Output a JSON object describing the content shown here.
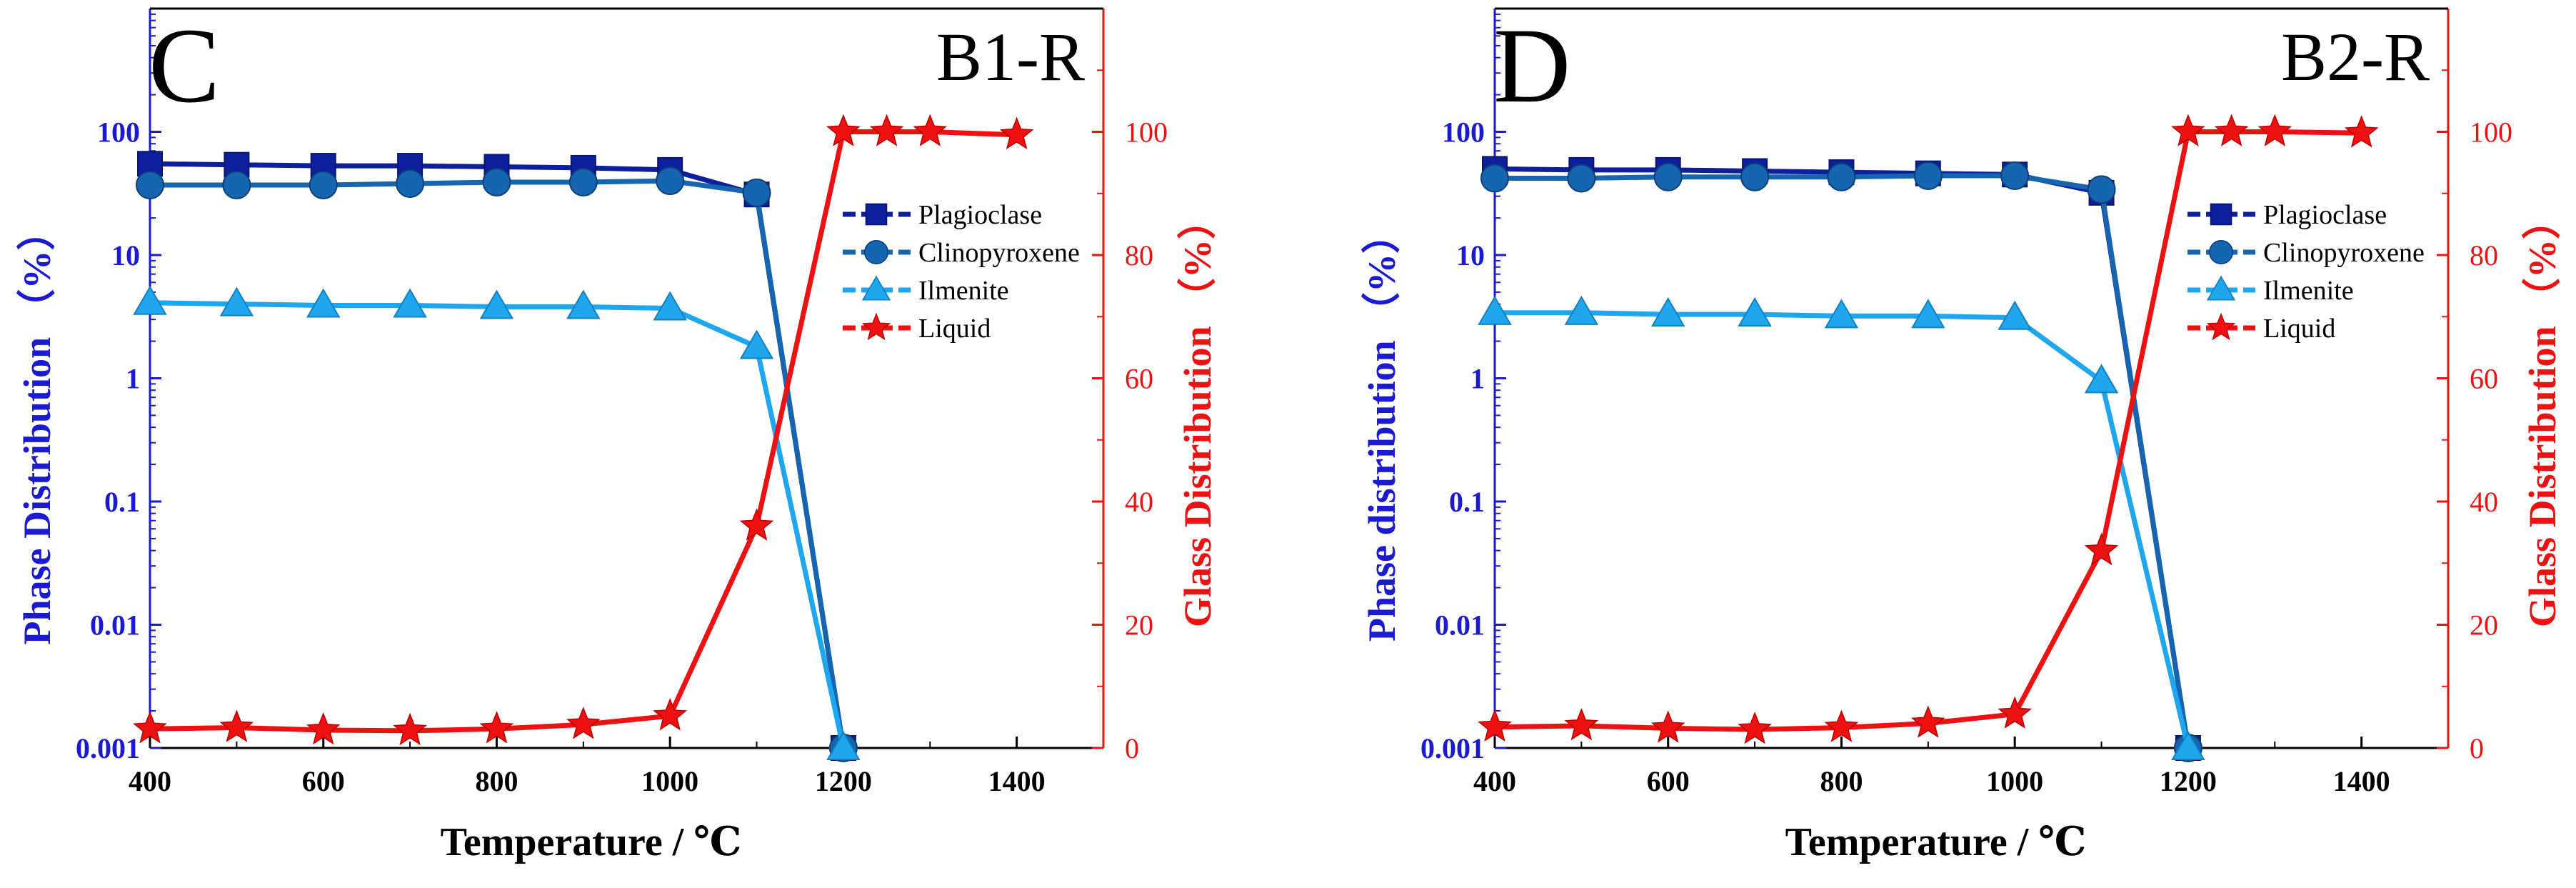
{
  "chart_data": [
    {
      "type": "line",
      "panel_letter": "C",
      "sample": "B1-R",
      "xlabel": "Temperature / ℃",
      "ylabel_left": "Phase Distribution （%）",
      "ylabel_right": "Glass Distribution （%）",
      "xlim": [
        400,
        1500
      ],
      "xticks": [
        400,
        600,
        800,
        1000,
        1200,
        1400
      ],
      "ylim_left": [
        0.001,
        1000
      ],
      "yscale_left": "log",
      "yticks_left": [
        "0.001",
        "0.01",
        "0.1",
        "1",
        "10",
        "100"
      ],
      "ylim_right": [
        0,
        120
      ],
      "yticks_right": [
        0,
        20,
        40,
        60,
        80,
        100
      ],
      "legend": [
        "Plagioclase",
        "Clinopyroxene",
        "Ilmenite",
        "Liquid"
      ],
      "legend_position": "top-right",
      "series": [
        {
          "name": "Plagioclase",
          "axis": "left",
          "marker": "square",
          "color": "#0d1f9c",
          "x": [
            400,
            500,
            600,
            700,
            800,
            900,
            1000,
            1100,
            1200
          ],
          "y": [
            55,
            54,
            53,
            53,
            52,
            51,
            49,
            31,
            0.001
          ]
        },
        {
          "name": "Clinopyroxene",
          "axis": "left",
          "marker": "circle",
          "color": "#1565b0",
          "x": [
            400,
            500,
            600,
            700,
            800,
            900,
            1000,
            1100,
            1200
          ],
          "y": [
            37,
            37,
            37,
            38,
            39,
            39,
            40,
            32,
            0.001
          ]
        },
        {
          "name": "Ilmenite",
          "axis": "left",
          "marker": "triangle",
          "color": "#1ea6ef",
          "x": [
            400,
            500,
            600,
            700,
            800,
            900,
            1000,
            1100,
            1200
          ],
          "y": [
            4.1,
            4.0,
            3.9,
            3.9,
            3.8,
            3.8,
            3.7,
            1.8,
            0.001
          ]
        },
        {
          "name": "Liquid",
          "axis": "right",
          "marker": "star",
          "color": "#ee1111",
          "x": [
            400,
            500,
            600,
            700,
            800,
            900,
            1000,
            1100,
            1200,
            1250,
            1300,
            1400
          ],
          "y": [
            3.1,
            3.3,
            2.9,
            2.8,
            3.1,
            3.8,
            5.2,
            36,
            100,
            100,
            100,
            99.5
          ]
        }
      ]
    },
    {
      "type": "line",
      "panel_letter": "D",
      "sample": "B2-R",
      "xlabel": "Temperature / ℃",
      "ylabel_left": "Phase distribution （%）",
      "ylabel_right": "Glass Distribution （%）",
      "xlim": [
        400,
        1500
      ],
      "xticks": [
        400,
        600,
        800,
        1000,
        1200,
        1400
      ],
      "ylim_left": [
        0.001,
        1000
      ],
      "yscale_left": "log",
      "yticks_left": [
        "0.001",
        "0.01",
        "0.1",
        "1",
        "10",
        "100"
      ],
      "ylim_right": [
        0,
        120
      ],
      "yticks_right": [
        0,
        20,
        40,
        60,
        80,
        100
      ],
      "legend": [
        "Plagioclase",
        "Clinopyroxene",
        "Ilmenite",
        "Liquid"
      ],
      "legend_position": "top-right",
      "series": [
        {
          "name": "Plagioclase",
          "axis": "left",
          "marker": "square",
          "color": "#0d1f9c",
          "x": [
            400,
            500,
            600,
            700,
            800,
            900,
            1000,
            1100,
            1200
          ],
          "y": [
            50,
            49,
            49,
            48,
            47,
            46,
            45,
            32,
            0.001
          ]
        },
        {
          "name": "Clinopyroxene",
          "axis": "left",
          "marker": "circle",
          "color": "#1565b0",
          "x": [
            400,
            500,
            600,
            700,
            800,
            900,
            1000,
            1100,
            1200
          ],
          "y": [
            42,
            42,
            43,
            43,
            43,
            44,
            44,
            34,
            0.001
          ]
        },
        {
          "name": "Ilmenite",
          "axis": "left",
          "marker": "triangle",
          "color": "#1ea6ef",
          "x": [
            400,
            500,
            600,
            700,
            800,
            900,
            1000,
            1100,
            1200
          ],
          "y": [
            3.4,
            3.4,
            3.3,
            3.3,
            3.2,
            3.2,
            3.1,
            0.95,
            0.001
          ]
        },
        {
          "name": "Liquid",
          "axis": "right",
          "marker": "star",
          "color": "#ee1111",
          "x": [
            400,
            500,
            600,
            700,
            800,
            900,
            1000,
            1100,
            1200,
            1250,
            1300,
            1400
          ],
          "y": [
            3.4,
            3.6,
            3.2,
            3.0,
            3.3,
            4.0,
            5.5,
            32,
            100,
            100,
            100,
            99.8
          ]
        }
      ]
    }
  ]
}
